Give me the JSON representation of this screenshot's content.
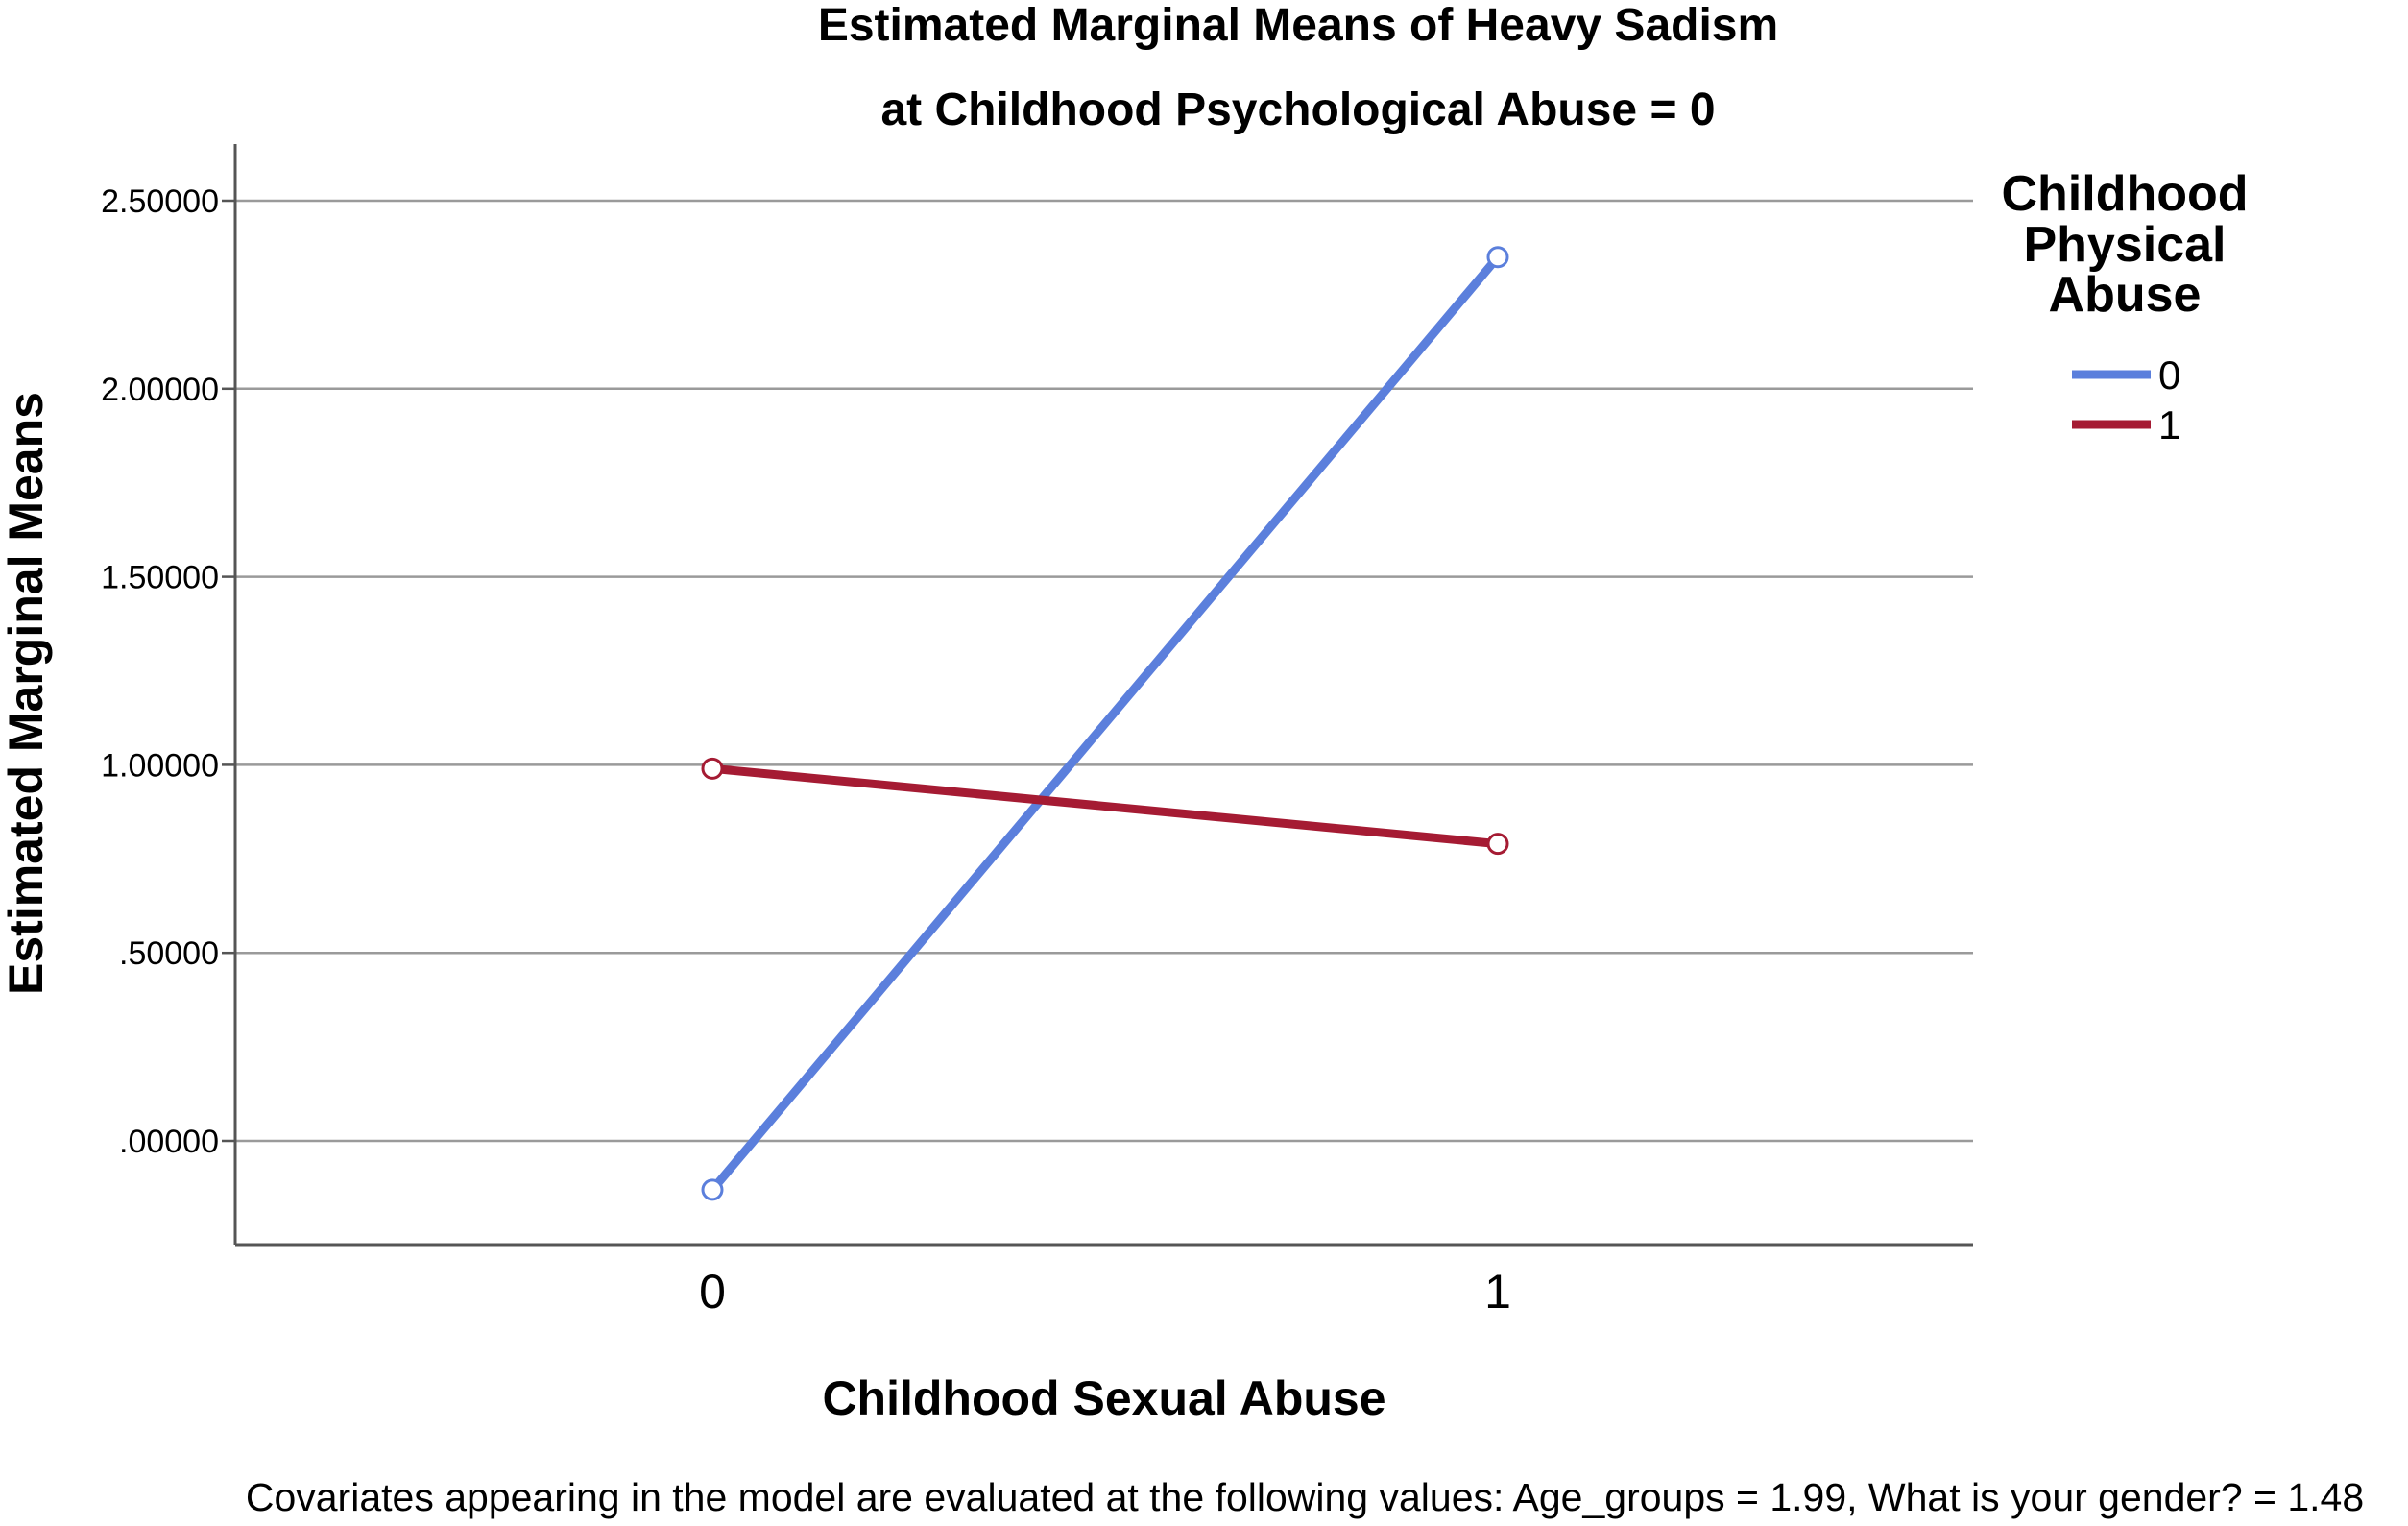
{
  "chart_data": {
    "type": "line",
    "title": "Estimated Marginal Means of Heavy Sadism",
    "subtitle": "at Childhood Psychological Abuse = 0",
    "xlabel": "Childhood Sexual Abuse",
    "ylabel": "Estimated Marginal Means",
    "categories": [
      "0",
      "1"
    ],
    "ylim": [
      -0.27,
      2.65
    ],
    "yticks": [
      0,
      0.5,
      1,
      1.5,
      2,
      2.5
    ],
    "ytick_labels": [
      ".00000",
      ".50000",
      "1.00000",
      "1.50000",
      "2.00000",
      "2.50000"
    ],
    "grid": "horizontal",
    "legend": {
      "title_lines": [
        "Childhood",
        "Physical",
        "Abuse"
      ],
      "placement": "right"
    },
    "series": [
      {
        "name": "0",
        "color": "#5b7fdc",
        "values": [
          -0.13,
          2.35
        ]
      },
      {
        "name": "1",
        "color": "#a51b33",
        "values": [
          0.99,
          0.79
        ]
      }
    ],
    "footnote": "Covariates appearing in the model are evaluated at the following values: Age_groups = 1.99, What is your gender? = 1.48"
  }
}
